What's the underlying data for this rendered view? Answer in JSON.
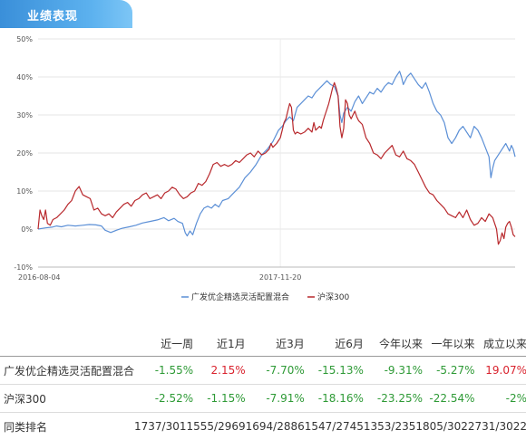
{
  "section": {
    "title": "业绩表现"
  },
  "chart_data": {
    "type": "line",
    "yticks": [
      "50%",
      "40%",
      "30%",
      "20%",
      "10%",
      "0%",
      "-10%"
    ],
    "ytick_values": [
      50,
      40,
      30,
      20,
      10,
      0,
      -10
    ],
    "ylim": [
      -10,
      50
    ],
    "xticks": [
      "2016-08-04",
      "2017-11-20"
    ],
    "grid": true,
    "legend_position": "bottom-center",
    "series": [
      {
        "name": "广发优企精选灵活配置混合",
        "color": "#5b8fd6",
        "points": [
          [
            0,
            0
          ],
          [
            8,
            0.3
          ],
          [
            15,
            0.5
          ],
          [
            20,
            0.8
          ],
          [
            25,
            0.6
          ],
          [
            32,
            1.0
          ],
          [
            40,
            0.8
          ],
          [
            48,
            1.0
          ],
          [
            55,
            1.2
          ],
          [
            62,
            1.1
          ],
          [
            68,
            0.8
          ],
          [
            72,
            -0.3
          ],
          [
            78,
            -0.9
          ],
          [
            84,
            -0.3
          ],
          [
            90,
            0.2
          ],
          [
            98,
            0.6
          ],
          [
            105,
            1.0
          ],
          [
            112,
            1.6
          ],
          [
            120,
            2.0
          ],
          [
            128,
            2.4
          ],
          [
            135,
            3.0
          ],
          [
            140,
            2.2
          ],
          [
            146,
            2.8
          ],
          [
            150,
            2.0
          ],
          [
            155,
            1.5
          ],
          [
            158,
            -1.0
          ],
          [
            160,
            -1.8
          ],
          [
            163,
            -0.5
          ],
          [
            166,
            -1.5
          ],
          [
            170,
            1.5
          ],
          [
            174,
            4.0
          ],
          [
            178,
            5.5
          ],
          [
            182,
            6.0
          ],
          [
            186,
            5.5
          ],
          [
            190,
            6.5
          ],
          [
            194,
            5.8
          ],
          [
            198,
            7.5
          ],
          [
            204,
            8.0
          ],
          [
            210,
            9.5
          ],
          [
            216,
            11.0
          ],
          [
            222,
            13.5
          ],
          [
            228,
            15.0
          ],
          [
            234,
            17.0
          ],
          [
            240,
            19.5
          ],
          [
            246,
            21.0
          ],
          [
            252,
            23.0
          ],
          [
            258,
            26.0
          ],
          [
            262,
            27.0
          ],
          [
            266,
            28.5
          ],
          [
            270,
            29.5
          ],
          [
            274,
            28.5
          ],
          [
            278,
            32.0
          ],
          [
            282,
            33.0
          ],
          [
            286,
            34.0
          ],
          [
            290,
            35.0
          ],
          [
            294,
            34.5
          ],
          [
            298,
            36.0
          ],
          [
            302,
            37.0
          ],
          [
            306,
            38.0
          ],
          [
            310,
            39.0
          ],
          [
            314,
            38.0
          ],
          [
            318,
            37.5
          ],
          [
            322,
            35.0
          ],
          [
            324,
            30.0
          ],
          [
            326,
            28.0
          ],
          [
            328,
            30.5
          ],
          [
            332,
            32.0
          ],
          [
            336,
            31.0
          ],
          [
            340,
            33.5
          ],
          [
            344,
            35.0
          ],
          [
            348,
            33.0
          ],
          [
            352,
            34.5
          ],
          [
            356,
            36.0
          ],
          [
            360,
            35.5
          ],
          [
            364,
            37.0
          ],
          [
            368,
            36.0
          ],
          [
            372,
            37.5
          ],
          [
            376,
            38.5
          ],
          [
            380,
            38.0
          ],
          [
            384,
            40.0
          ],
          [
            388,
            41.5
          ],
          [
            390,
            40.0
          ],
          [
            392,
            38.0
          ],
          [
            396,
            40.0
          ],
          [
            400,
            41.0
          ],
          [
            404,
            39.5
          ],
          [
            408,
            38.0
          ],
          [
            412,
            37.0
          ],
          [
            416,
            38.5
          ],
          [
            420,
            36.0
          ],
          [
            424,
            33.0
          ],
          [
            428,
            31.0
          ],
          [
            432,
            30.0
          ],
          [
            436,
            28.0
          ],
          [
            440,
            24.0
          ],
          [
            444,
            22.5
          ],
          [
            448,
            24.0
          ],
          [
            452,
            26.0
          ],
          [
            456,
            27.0
          ],
          [
            460,
            25.5
          ],
          [
            464,
            24.0
          ],
          [
            468,
            27.0
          ],
          [
            472,
            26.0
          ],
          [
            476,
            24.0
          ],
          [
            480,
            21.5
          ],
          [
            484,
            19.0
          ],
          [
            486,
            13.5
          ],
          [
            488,
            16.0
          ],
          [
            490,
            18.0
          ],
          [
            494,
            19.5
          ],
          [
            498,
            21.0
          ],
          [
            502,
            22.5
          ],
          [
            506,
            20.5
          ],
          [
            508,
            22.0
          ],
          [
            510,
            21.0
          ],
          [
            512,
            19.0
          ]
        ]
      },
      {
        "name": "沪深300",
        "color": "#b8282c",
        "points": [
          [
            0,
            0
          ],
          [
            2,
            5.0
          ],
          [
            4,
            3.5
          ],
          [
            6,
            2.5
          ],
          [
            8,
            5.0
          ],
          [
            10,
            1.5
          ],
          [
            13,
            1.0
          ],
          [
            16,
            2.5
          ],
          [
            20,
            3.0
          ],
          [
            24,
            4.0
          ],
          [
            28,
            5.0
          ],
          [
            32,
            6.5
          ],
          [
            36,
            7.5
          ],
          [
            40,
            10.0
          ],
          [
            44,
            11.2
          ],
          [
            48,
            9.0
          ],
          [
            52,
            8.5
          ],
          [
            56,
            8.0
          ],
          [
            60,
            5.0
          ],
          [
            64,
            5.5
          ],
          [
            68,
            4.0
          ],
          [
            72,
            3.5
          ],
          [
            76,
            4.0
          ],
          [
            80,
            3.0
          ],
          [
            84,
            4.5
          ],
          [
            88,
            5.5
          ],
          [
            92,
            6.5
          ],
          [
            96,
            7.0
          ],
          [
            100,
            6.0
          ],
          [
            104,
            7.5
          ],
          [
            108,
            8.0
          ],
          [
            112,
            9.0
          ],
          [
            116,
            9.5
          ],
          [
            120,
            8.0
          ],
          [
            124,
            8.5
          ],
          [
            128,
            9.0
          ],
          [
            132,
            8.0
          ],
          [
            136,
            9.5
          ],
          [
            140,
            10.0
          ],
          [
            144,
            11.0
          ],
          [
            148,
            10.5
          ],
          [
            152,
            9.0
          ],
          [
            156,
            8.0
          ],
          [
            160,
            8.5
          ],
          [
            164,
            9.5
          ],
          [
            168,
            10.0
          ],
          [
            172,
            12.0
          ],
          [
            176,
            11.5
          ],
          [
            180,
            12.5
          ],
          [
            184,
            14.5
          ],
          [
            188,
            17.0
          ],
          [
            192,
            17.5
          ],
          [
            196,
            16.5
          ],
          [
            200,
            17.0
          ],
          [
            204,
            16.5
          ],
          [
            208,
            17.0
          ],
          [
            212,
            18.0
          ],
          [
            216,
            17.5
          ],
          [
            220,
            18.5
          ],
          [
            224,
            19.5
          ],
          [
            228,
            20.0
          ],
          [
            232,
            19.0
          ],
          [
            236,
            20.5
          ],
          [
            240,
            19.5
          ],
          [
            244,
            20.0
          ],
          [
            248,
            21.0
          ],
          [
            250,
            22.5
          ],
          [
            252,
            21.5
          ],
          [
            256,
            22.5
          ],
          [
            260,
            24.0
          ],
          [
            262,
            26.0
          ],
          [
            264,
            28.0
          ],
          [
            266,
            29.0
          ],
          [
            268,
            31.0
          ],
          [
            270,
            33.0
          ],
          [
            272,
            32.0
          ],
          [
            274,
            26.0
          ],
          [
            276,
            25.0
          ],
          [
            278,
            25.5
          ],
          [
            282,
            25.0
          ],
          [
            286,
            25.5
          ],
          [
            290,
            26.5
          ],
          [
            294,
            25.5
          ],
          [
            296,
            28.0
          ],
          [
            298,
            26.0
          ],
          [
            302,
            27.0
          ],
          [
            304,
            26.5
          ],
          [
            306,
            28.5
          ],
          [
            308,
            30.0
          ],
          [
            310,
            31.5
          ],
          [
            312,
            33.0
          ],
          [
            314,
            35.0
          ],
          [
            316,
            37.0
          ],
          [
            318,
            38.5
          ],
          [
            320,
            37.0
          ],
          [
            322,
            35.0
          ],
          [
            324,
            27.0
          ],
          [
            326,
            24.0
          ],
          [
            328,
            26.5
          ],
          [
            330,
            34.0
          ],
          [
            332,
            33.0
          ],
          [
            334,
            30.0
          ],
          [
            336,
            29.0
          ],
          [
            338,
            30.0
          ],
          [
            340,
            31.0
          ],
          [
            342,
            29.5
          ],
          [
            344,
            28.5
          ],
          [
            348,
            27.5
          ],
          [
            352,
            24.0
          ],
          [
            356,
            22.5
          ],
          [
            360,
            20.0
          ],
          [
            364,
            19.5
          ],
          [
            368,
            18.5
          ],
          [
            372,
            20.0
          ],
          [
            376,
            21.0
          ],
          [
            380,
            22.0
          ],
          [
            384,
            19.5
          ],
          [
            388,
            19.0
          ],
          [
            392,
            20.5
          ],
          [
            396,
            18.5
          ],
          [
            400,
            18.0
          ],
          [
            404,
            17.0
          ],
          [
            408,
            15.0
          ],
          [
            412,
            13.0
          ],
          [
            416,
            11.0
          ],
          [
            420,
            9.5
          ],
          [
            424,
            9.0
          ],
          [
            428,
            7.5
          ],
          [
            432,
            6.5
          ],
          [
            436,
            5.5
          ],
          [
            440,
            4.0
          ],
          [
            444,
            3.5
          ],
          [
            448,
            3.0
          ],
          [
            452,
            4.5
          ],
          [
            456,
            3.0
          ],
          [
            460,
            5.0
          ],
          [
            464,
            2.5
          ],
          [
            468,
            1.0
          ],
          [
            472,
            1.5
          ],
          [
            476,
            3.0
          ],
          [
            480,
            2.0
          ],
          [
            484,
            4.0
          ],
          [
            488,
            3.0
          ],
          [
            492,
            0.0
          ],
          [
            494,
            -4.0
          ],
          [
            496,
            -3.0
          ],
          [
            498,
            -1.0
          ],
          [
            500,
            -2.5
          ],
          [
            502,
            0.5
          ],
          [
            504,
            1.5
          ],
          [
            506,
            2.0
          ],
          [
            508,
            0.5
          ],
          [
            510,
            -1.5
          ],
          [
            512,
            -2.0
          ]
        ]
      }
    ]
  },
  "table": {
    "headers": [
      "近一周",
      "近1月",
      "近3月",
      "近6月",
      "今年以来",
      "一年以来",
      "成立以来"
    ],
    "rows": [
      {
        "name": "广发优企精选灵活配置混合",
        "values": [
          "-1.55%",
          "2.15%",
          "-7.70%",
          "-15.13%",
          "-9.31%",
          "-5.27%",
          "19.07%"
        ],
        "tones": [
          "neg",
          "pos",
          "neg",
          "neg",
          "neg",
          "neg",
          "pos"
        ]
      },
      {
        "name": "沪深300",
        "values": [
          "-2.52%",
          "-1.15%",
          "-7.91%",
          "-18.16%",
          "-23.25%",
          "-22.54%",
          "-2%"
        ],
        "tones": [
          "neg",
          "neg",
          "neg",
          "neg",
          "neg",
          "neg",
          "neg"
        ]
      },
      {
        "name": "同类排名",
        "values": [
          "1737/3011",
          "555/2969",
          "1694/2886",
          "1547/2745",
          "1353/2351",
          "805/3022",
          "731/3022"
        ],
        "tones": [
          "neu",
          "neu",
          "neu",
          "neu",
          "neu",
          "neu",
          "neu"
        ]
      }
    ]
  }
}
